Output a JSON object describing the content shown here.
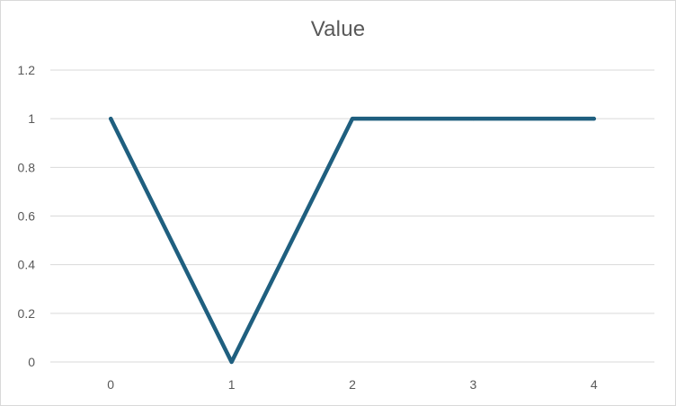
{
  "chart_data": {
    "type": "line",
    "title": "Value",
    "x": [
      0,
      1,
      2,
      3,
      4
    ],
    "series": [
      {
        "values": [
          1,
          0,
          1,
          1,
          1
        ],
        "color": "#1f5f7f"
      }
    ],
    "xlabel": "",
    "ylabel": "",
    "ylim": [
      0,
      1.2
    ],
    "y_ticks": [
      "0",
      "0.2",
      "0.4",
      "0.6",
      "0.8",
      "1",
      "1.2"
    ],
    "x_ticks": [
      "0",
      "1",
      "2",
      "3",
      "4"
    ],
    "grid": true,
    "legend": "none",
    "gridline_color": "#d9d9d9"
  }
}
